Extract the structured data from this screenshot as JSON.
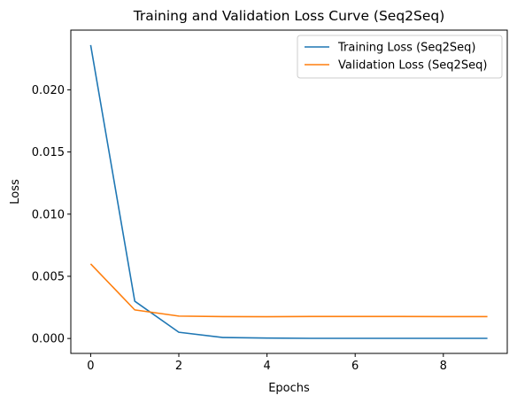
{
  "chart_data": {
    "type": "line",
    "title": "Training and Validation Loss Curve (Seq2Seq)",
    "xlabel": "Epochs",
    "ylabel": "Loss",
    "xlim": [
      -0.45,
      9.45
    ],
    "ylim": [
      -0.0012,
      0.0248
    ],
    "xticks": [
      0,
      2,
      4,
      6,
      8
    ],
    "xtick_labels": [
      "0",
      "2",
      "4",
      "6",
      "8"
    ],
    "yticks": [
      0.0,
      0.005,
      0.01,
      0.015,
      0.02
    ],
    "ytick_labels": [
      "0.000",
      "0.005",
      "0.010",
      "0.015",
      "0.020"
    ],
    "grid": false,
    "legend_position": "top-right",
    "x": [
      0,
      1,
      2,
      3,
      4,
      5,
      6,
      7,
      8,
      9
    ],
    "series": [
      {
        "name": "Training Loss (Seq2Seq)",
        "color": "#1f77b4",
        "values": [
          0.0236,
          0.003,
          0.0005,
          8e-05,
          3e-05,
          1e-05,
          1e-05,
          1e-05,
          1e-05,
          1e-05
        ]
      },
      {
        "name": "Validation Loss (Seq2Seq)",
        "color": "#ff7f0e",
        "values": [
          0.006,
          0.0023,
          0.0018,
          0.00176,
          0.00175,
          0.00177,
          0.00177,
          0.00177,
          0.00176,
          0.00176
        ]
      }
    ]
  }
}
